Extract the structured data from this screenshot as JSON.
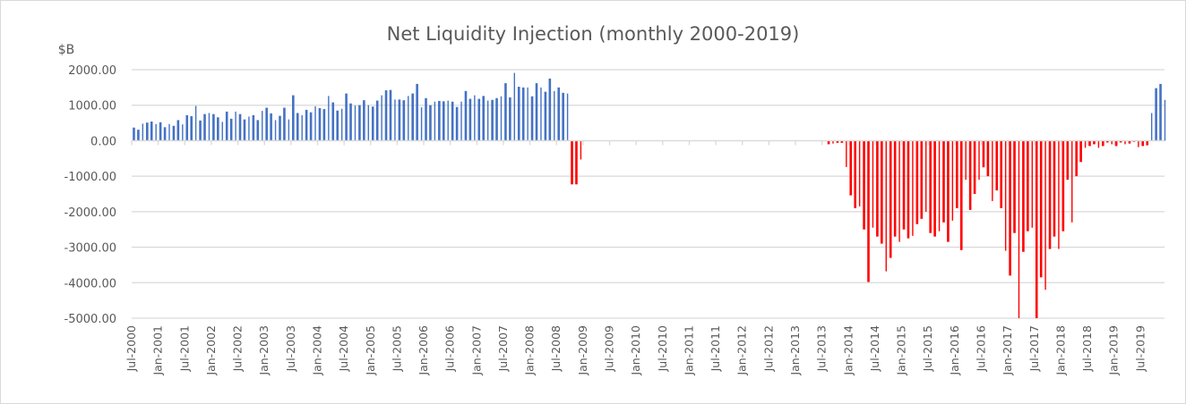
{
  "chart_data": {
    "type": "bar",
    "title": "Net Liquidity Injection (monthly 2000-2019)",
    "ylabel": "$B",
    "xlabel": "",
    "ylim": [
      -5000,
      2000
    ],
    "yticks": [
      "2000.00",
      "1000.00",
      "0.00",
      "-1000.00",
      "-2000.00",
      "-3000.00",
      "-4000.00",
      "-5000.00"
    ],
    "ytick_values": [
      2000,
      1000,
      0,
      -1000,
      -2000,
      -3000,
      -4000,
      -5000
    ],
    "grid": true,
    "legend": "none",
    "start_month": "Jul-2000",
    "xticks": [
      "Jul-2000",
      "Jan-2001",
      "Jul-2001",
      "Jan-2002",
      "Jul-2002",
      "Jan-2003",
      "Jul-2003",
      "Jan-2004",
      "Jul-2004",
      "Jan-2005",
      "Jul-2005",
      "Jan-2006",
      "Jul-2006",
      "Jan-2007",
      "Jul-2007",
      "Jan-2008",
      "Jul-2008",
      "Jan-2009",
      "Jul-2009",
      "Jan-2010",
      "Jul-2010",
      "Jan-2011",
      "Jul-2011",
      "Jan-2012",
      "Jul-2012",
      "Jan-2013",
      "Jul-2013",
      "Jan-2014",
      "Jul-2014",
      "Jan-2015",
      "Jul-2015",
      "Jan-2016",
      "Jul-2016",
      "Jan-2017",
      "Jul-2017",
      "Jan-2018",
      "Jul-2018",
      "Jan-2019",
      "Jul-2019"
    ],
    "colors": {
      "positive": "#4472c4",
      "negative": "#ff0000"
    },
    "values": [
      370,
      310,
      480,
      510,
      540,
      470,
      520,
      380,
      470,
      420,
      580,
      460,
      720,
      690,
      980,
      570,
      750,
      780,
      750,
      660,
      530,
      820,
      620,
      820,
      750,
      600,
      680,
      720,
      580,
      840,
      930,
      770,
      580,
      700,
      930,
      600,
      1280,
      780,
      720,
      870,
      800,
      970,
      920,
      890,
      1260,
      1080,
      850,
      900,
      1330,
      1050,
      990,
      1000,
      1140,
      1000,
      960,
      1130,
      1280,
      1420,
      1430,
      1160,
      1160,
      1140,
      1260,
      1330,
      1600,
      940,
      1200,
      1000,
      1100,
      1120,
      1110,
      1130,
      1100,
      950,
      1100,
      1400,
      1180,
      1280,
      1180,
      1260,
      1130,
      1150,
      1200,
      1250,
      1620,
      1220,
      1910,
      1520,
      1500,
      1500,
      1250,
      1620,
      1500,
      1380,
      1750,
      1400,
      1500,
      1350,
      1330,
      -1230,
      -1230,
      -530,
      0,
      0,
      0,
      0,
      0,
      0,
      0,
      0,
      0,
      0,
      0,
      0,
      0,
      0,
      0,
      0,
      0,
      0,
      0,
      0,
      0,
      0,
      0,
      0,
      0,
      0,
      0,
      0,
      0,
      0,
      0,
      0,
      0,
      0,
      0,
      0,
      0,
      0,
      0,
      0,
      0,
      0,
      0,
      0,
      0,
      0,
      0,
      0,
      0,
      0,
      0,
      0,
      0,
      0,
      0,
      -100,
      -80,
      -60,
      -60,
      -740,
      -1540,
      -1900,
      -1850,
      -2500,
      -3980,
      -2450,
      -2700,
      -2900,
      -3680,
      -3300,
      -2700,
      -2850,
      -2500,
      -2750,
      -2680,
      -2350,
      -2200,
      -2000,
      -2600,
      -2700,
      -2550,
      -2300,
      -2850,
      -2250,
      -1900,
      -3080,
      -1100,
      -1950,
      -1500,
      -1100,
      -750,
      -1000,
      -1700,
      -1400,
      -1900,
      -3100,
      -3800,
      -2600,
      -5000,
      -3130,
      -2550,
      -2450,
      -5000,
      -3850,
      -4200,
      -3050,
      -2700,
      -3050,
      -2550,
      -1100,
      -2300,
      -1000,
      -600,
      -200,
      -150,
      -100,
      -200,
      -150,
      -50,
      -100,
      -150,
      -50,
      -100,
      -80,
      -30,
      -180,
      -150,
      -130,
      780,
      1480,
      1600,
      1150
    ]
  }
}
